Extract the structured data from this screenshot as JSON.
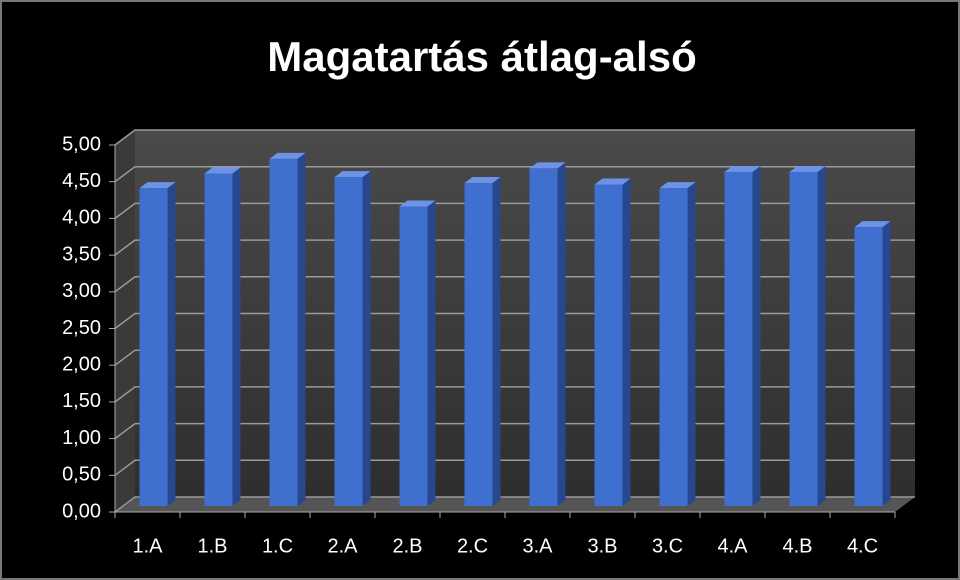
{
  "chart_data": {
    "type": "bar3d",
    "title": "Magatartás átlag-alsó",
    "categories": [
      "1.A",
      "1.B",
      "1.C",
      "2.A",
      "2.B",
      "2.C",
      "3.A",
      "3.B",
      "3.C",
      "4.A",
      "4.B",
      "4.C"
    ],
    "values": [
      4.33,
      4.53,
      4.73,
      4.48,
      4.08,
      4.4,
      4.6,
      4.38,
      4.33,
      4.55,
      4.55,
      3.8
    ],
    "color": "#3f6fcf",
    "ylim": [
      0,
      5
    ],
    "yticks": [
      {
        "value": 0,
        "label": "0,00"
      },
      {
        "value": 0.5,
        "label": "0,50"
      },
      {
        "value": 1,
        "label": "1,00"
      },
      {
        "value": 1.5,
        "label": "1,50"
      },
      {
        "value": 2,
        "label": "2,00"
      },
      {
        "value": 2.5,
        "label": "2,50"
      },
      {
        "value": 3,
        "label": "3,00"
      },
      {
        "value": 3.5,
        "label": "3,50"
      },
      {
        "value": 4,
        "label": "4,00"
      },
      {
        "value": 4.5,
        "label": "4,50"
      },
      {
        "value": 5,
        "label": "5,00"
      }
    ],
    "grid": true
  }
}
